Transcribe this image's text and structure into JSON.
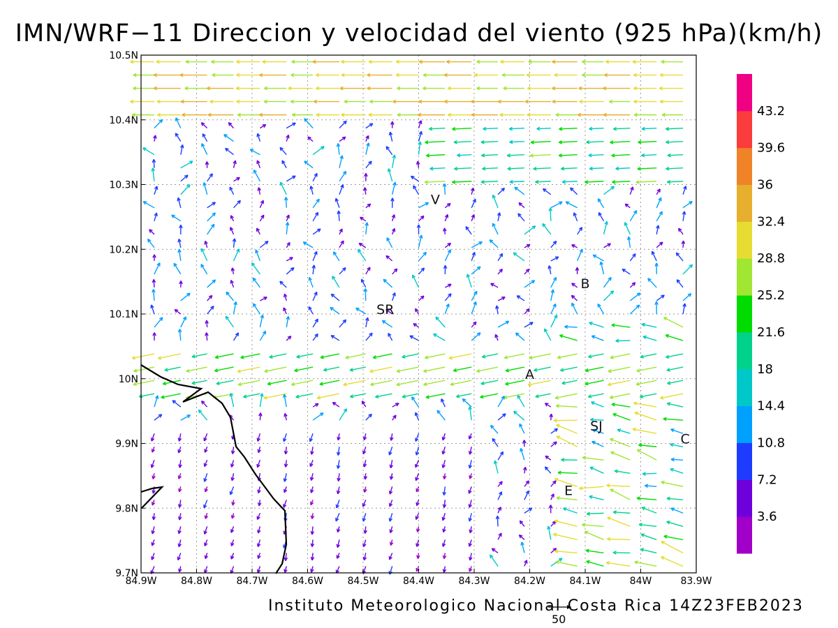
{
  "title": "IMN/WRF−11 Direccion y velocidad del viento (925 hPa)(km/h)",
  "footer": "Instituto Meteorologico Nacional Costa Rica 14Z23FEB2023",
  "reference_vector_label": "50",
  "map": {
    "lon_range": [
      -84.9,
      -83.9
    ],
    "lat_range": [
      9.7,
      10.5
    ],
    "lon_ticks": [
      "84.9W",
      "84.8W",
      "84.7W",
      "84.6W",
      "84.5W",
      "84.4W",
      "84.3W",
      "84.2W",
      "84.1W",
      "84W",
      "83.9W"
    ],
    "lat_ticks": [
      "9.7N",
      "9.8N",
      "9.9N",
      "10N",
      "10.1N",
      "10.2N",
      "10.3N",
      "10.4N",
      "10.5N"
    ],
    "grid": "dotted",
    "places": [
      {
        "label": "V",
        "lon": -84.37,
        "lat": 10.27
      },
      {
        "label": "B",
        "lon": -84.1,
        "lat": 10.14
      },
      {
        "label": "SR",
        "lon": -84.46,
        "lat": 10.1
      },
      {
        "label": "A",
        "lon": -84.2,
        "lat": 10.0
      },
      {
        "label": "SJ",
        "lon": -84.08,
        "lat": 9.92
      },
      {
        "label": "C",
        "lon": -83.92,
        "lat": 9.9
      },
      {
        "label": "E",
        "lon": -84.13,
        "lat": 9.82
      }
    ]
  },
  "colorbar": {
    "labels": [
      "3.6",
      "7.2",
      "10.8",
      "14.4",
      "18",
      "21.6",
      "25.2",
      "28.8",
      "32.4",
      "36",
      "39.6",
      "43.2"
    ],
    "colors": [
      "#a000c8",
      "#6e00dc",
      "#1e3cff",
      "#00a0ff",
      "#00c8c8",
      "#00d28c",
      "#00dc00",
      "#a0e632",
      "#e6dc32",
      "#e6af2d",
      "#f08228",
      "#fa3c3c",
      "#f00082"
    ]
  }
}
